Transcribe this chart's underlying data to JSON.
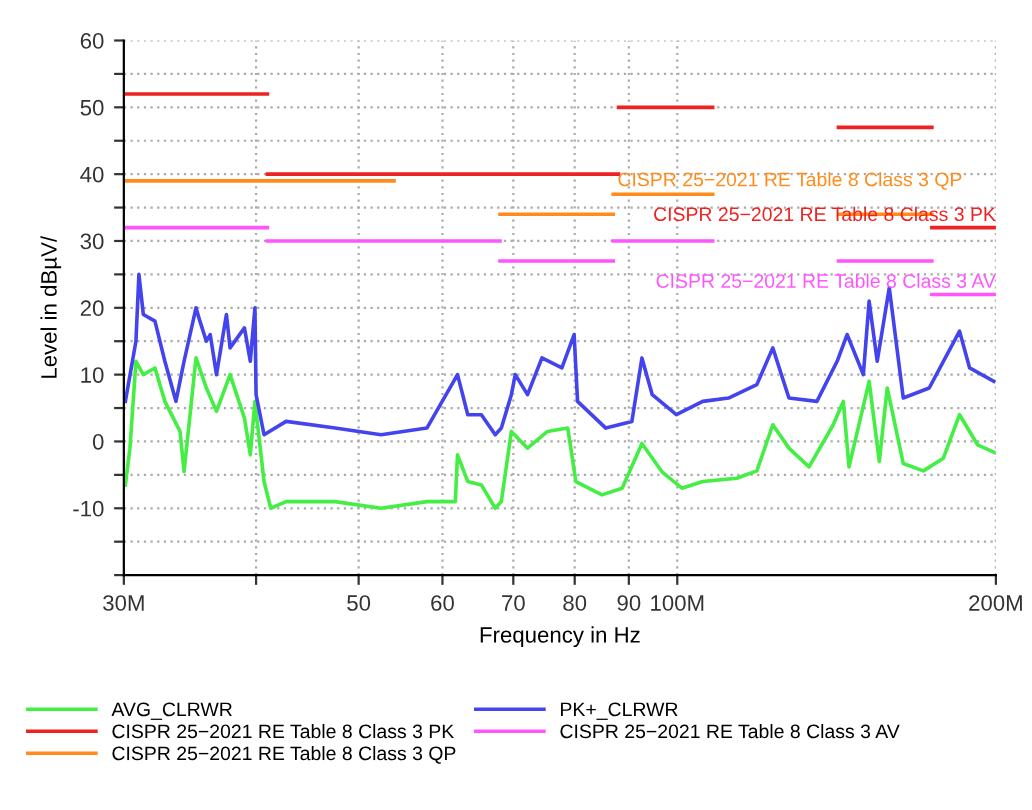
{
  "chart_data": {
    "type": "line",
    "xlabel": "Frequency in Hz",
    "ylabel": "Level in dBµV/",
    "log": "x",
    "xlim": [
      30,
      200
    ],
    "ylim": [
      -20,
      60
    ],
    "xticks": [
      {
        "value": 30,
        "label": "30M"
      },
      {
        "value": 40,
        "label": null
      },
      50,
      60,
      70,
      80,
      90,
      {
        "value": 100,
        "label": "100M"
      },
      {
        "value": 200,
        "label": "200M"
      }
    ],
    "yticks": [
      {
        "value": -20,
        "label": null
      },
      {
        "value": -15,
        "label": null
      },
      -10,
      {
        "value": -5,
        "label": null
      },
      0,
      {
        "value": 5,
        "label": null
      },
      10,
      {
        "value": 15,
        "label": null
      },
      20,
      {
        "value": 25,
        "label": null
      },
      30,
      {
        "value": 35,
        "label": null
      },
      40,
      {
        "value": 45,
        "label": null
      },
      50,
      {
        "value": 55,
        "label": null
      },
      60
    ],
    "grid": true,
    "legend": "bottom",
    "line_style": "solid",
    "marker": "none",
    "series": [
      {
        "name": "AVG_CLRWR",
        "color": "#44ee44",
        "x": [
          30.1,
          30.4,
          30.8,
          31.3,
          32.1,
          32.8,
          33.9,
          34.2,
          35.1,
          35.9,
          36.7,
          37.8,
          39.0,
          39.5,
          39.9,
          40.7,
          41.3,
          42.7,
          47.5,
          52.5,
          58.0,
          61.7,
          62.0,
          63.4,
          65.3,
          67.3,
          68.2,
          69.7,
          72.2,
          75.4,
          78.8,
          80.2,
          84.9,
          88.7,
          92.6,
          96.8,
          101,
          105.7,
          113.8,
          118.9,
          123.1,
          127.5,
          133.2,
          140.4,
          143.5,
          145.3,
          151.8,
          155.2,
          157.9,
          163.5,
          170.8,
          178.4,
          184.8,
          192.2,
          199.1
        ],
        "values": [
          -6.5,
          -1,
          12,
          10,
          11,
          6,
          1.5,
          -4.5,
          12.5,
          8,
          4.5,
          10,
          3.5,
          -2,
          6,
          -6,
          -10,
          -9,
          -9,
          -10,
          -9,
          -9,
          -2,
          -6,
          -6.5,
          -10,
          -9,
          1.5,
          -1,
          1.5,
          2,
          -6,
          -8,
          -7,
          -0.3,
          -4.6,
          -7,
          -6,
          -5.5,
          -4.4,
          2.5,
          -1,
          -3.8,
          2.5,
          6,
          -3.8,
          9,
          -3,
          8,
          -3.3,
          -4.4,
          -2.5,
          4,
          -0.5,
          -1.6
        ]
      },
      {
        "name": "CISPR 25−2021 RE Table 8 Class 3 PK",
        "color": "#ee2222",
        "x": [
          30,
          41
        ],
        "values": [
          52,
          52
        ]
      },
      {
        "name": "CISPR 25−2021 RE Table 8 Class 3 QP",
        "color": "#ff8c1a",
        "x": [
          30,
          54
        ],
        "values": [
          39,
          39
        ]
      },
      {
        "name": "PK+_CLRWR",
        "color": "#4444ee",
        "x": [
          30.1,
          30.8,
          31.0,
          31.3,
          32.1,
          32.8,
          33.6,
          34.2,
          35.1,
          35.4,
          35.9,
          36.2,
          36.7,
          37.5,
          37.8,
          39.0,
          39.5,
          39.9,
          40.0,
          40.7,
          42.7,
          47.5,
          52.5,
          58.0,
          62.0,
          63.4,
          65.3,
          67.3,
          68.2,
          69.7,
          70.3,
          72.2,
          74.5,
          77.8,
          79.9,
          80.5,
          85.6,
          90.6,
          92.6,
          94.7,
          99.8,
          105.7,
          111.8,
          118.9,
          123.1,
          127.5,
          135.5,
          141.6,
          144.7,
          149.9,
          151.8,
          154.5,
          158.6,
          163.5,
          173,
          184.8,
          188.9,
          199.1
        ],
        "values": [
          6,
          15,
          25,
          19,
          18,
          12,
          6,
          12,
          20,
          18,
          15,
          16,
          10,
          19,
          14,
          17,
          12,
          20,
          7,
          1,
          3,
          2,
          1,
          2,
          10,
          4,
          4,
          1,
          2,
          7,
          10,
          7,
          12.5,
          11,
          16,
          6,
          2,
          3,
          12.5,
          7,
          4,
          6,
          6.5,
          8.5,
          14,
          6.5,
          6,
          12,
          16,
          10,
          21,
          12,
          23,
          6.5,
          8,
          16.5,
          11,
          9
        ]
      },
      {
        "name": "CISPR 25−2021 RE Table 8 Class 3 AV",
        "color": "#ff55ff",
        "x": [
          30,
          41
        ],
        "values": [
          32,
          32
        ]
      },
      {
        "color": "#ee2222",
        "x": [
          41,
          88
        ],
        "values": [
          40,
          40
        ]
      },
      {
        "color": "#ee2222",
        "x": [
          88,
          108
        ],
        "values": [
          50,
          50
        ]
      },
      {
        "color": "#ee2222",
        "x": [
          142,
          174
        ],
        "values": [
          47,
          47
        ]
      },
      {
        "color": "#ee2222",
        "x": [
          174,
          200
        ],
        "values": [
          32,
          32
        ]
      },
      {
        "color": "#ff8c1a",
        "x": [
          68,
          87
        ],
        "values": [
          34,
          34
        ]
      },
      {
        "color": "#ff8c1a",
        "x": [
          87,
          108
        ],
        "values": [
          37,
          37
        ]
      },
      {
        "color": "#ff8c1a",
        "x": [
          142,
          174
        ],
        "values": [
          34,
          34
        ]
      },
      {
        "color": "#ff55ff",
        "x": [
          41,
          68
        ],
        "values": [
          30,
          30
        ]
      },
      {
        "color": "#ff55ff",
        "x": [
          68,
          87
        ],
        "values": [
          27,
          27
        ]
      },
      {
        "color": "#ff55ff",
        "x": [
          87,
          108
        ],
        "values": [
          30,
          30
        ]
      },
      {
        "color": "#ff55ff",
        "x": [
          142,
          174
        ],
        "values": [
          27,
          27
        ]
      },
      {
        "color": "#ff55ff",
        "x": [
          174,
          200
        ],
        "values": [
          22,
          22
        ]
      }
    ],
    "annotations": [
      "CISPR 25−2021 RE Table 8 Class 3 QP",
      "CISPR 25−2021 RE Table 8 Class 3 PK",
      "CISPR 25−2021 RE Table 8 Class 3 AV"
    ]
  }
}
